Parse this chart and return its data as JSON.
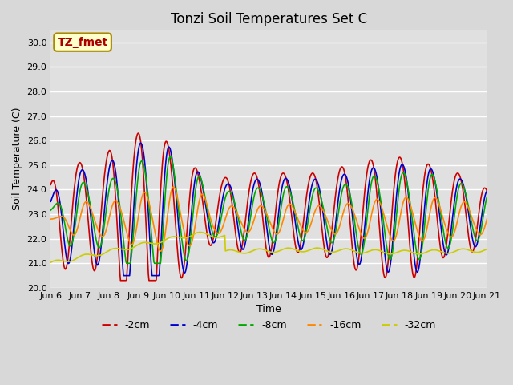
{
  "title": "Tonzi Soil Temperatures Set C",
  "xlabel": "Time",
  "ylabel": "Soil Temperature (C)",
  "ylim": [
    20.0,
    30.5
  ],
  "yticks": [
    20.0,
    21.0,
    22.0,
    23.0,
    24.0,
    25.0,
    26.0,
    27.0,
    28.0,
    29.0,
    30.0
  ],
  "xtick_labels": [
    "Jun 6",
    "Jun 7",
    "Jun 8",
    "Jun 9",
    "Jun 10",
    "Jun 11",
    "Jun 12",
    "Jun 13",
    "Jun 14",
    "Jun 15",
    "Jun 16",
    "Jun 17",
    "Jun 18",
    "Jun 19",
    "Jun 20",
    "Jun 21"
  ],
  "line_colors": {
    "-2cm": "#cc0000",
    "-4cm": "#0000cc",
    "-8cm": "#00aa00",
    "-16cm": "#ff8800",
    "-32cm": "#cccc00"
  },
  "annotation_text": "TZ_fmet",
  "annotation_bg": "#ffffcc",
  "annotation_border": "#aa8800",
  "fig_facecolor": "#d8d8d8",
  "plot_bg_color": "#e0e0e0",
  "linewidth": 1.2,
  "title_fontsize": 12,
  "axis_label_fontsize": 9,
  "tick_fontsize": 8,
  "legend_fontsize": 9
}
